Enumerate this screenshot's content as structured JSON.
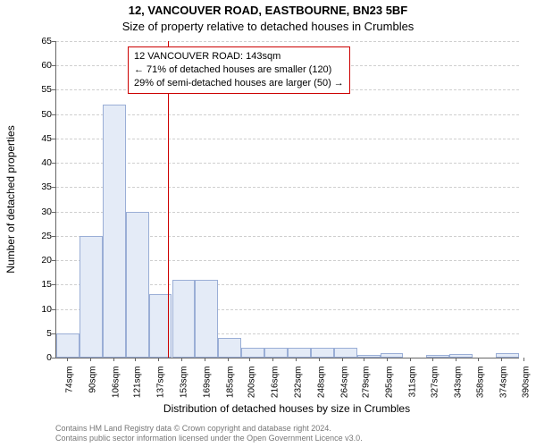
{
  "title_main": "12, VANCOUVER ROAD, EASTBOURNE, BN23 5BF",
  "title_sub": "Size of property relative to detached houses in Crumbles",
  "chart": {
    "type": "histogram",
    "background_color": "#ffffff",
    "bar_fill": "#e4ebf7",
    "bar_stroke": "#9aaed6",
    "grid_color": "#cfcfcf",
    "axis_color": "#666666",
    "ref_line_color": "#cc0000",
    "ref_line_x": 143,
    "ylabel": "Number of detached properties",
    "xlabel": "Distribution of detached houses by size in Crumbles",
    "ylim": [
      0,
      65
    ],
    "ytick_step": 5,
    "x_start": 66,
    "x_bin_width": 16,
    "x_ticks": [
      74,
      90,
      106,
      121,
      137,
      153,
      169,
      185,
      200,
      216,
      232,
      248,
      264,
      279,
      295,
      311,
      327,
      343,
      358,
      374,
      390
    ],
    "x_tick_suffix": "sqm",
    "values": [
      5,
      25,
      52,
      30,
      13,
      16,
      16,
      4,
      2,
      2,
      2,
      2,
      2,
      0.5,
      1,
      0,
      0.5,
      0.7,
      0,
      1
    ],
    "label_fontsize": 12,
    "tick_fontsize": 10
  },
  "info_box": {
    "line1": "12 VANCOUVER ROAD: 143sqm",
    "line2": "← 71% of detached houses are smaller (120)",
    "line3": "29% of semi-detached houses are larger (50) →"
  },
  "attribution": {
    "line1": "Contains HM Land Registry data © Crown copyright and database right 2024.",
    "line2": "Contains public sector information licensed under the Open Government Licence v3.0."
  }
}
